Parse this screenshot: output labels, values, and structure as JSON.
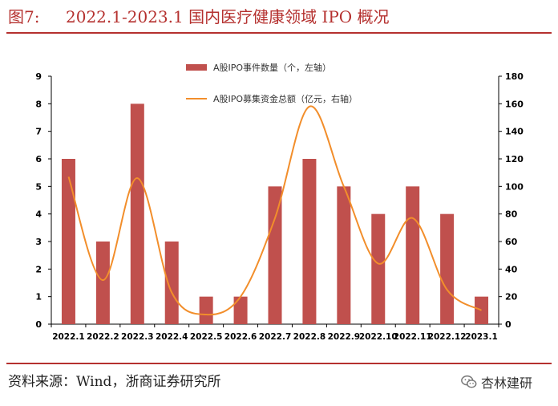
{
  "title": {
    "figure_number": "图7:",
    "text": "2022.1-2023.1 国内医疗健康领域 IPO 概况"
  },
  "source": "资料来源：Wind，浙商证券研究所",
  "brand": {
    "name": "杏林建研",
    "icon": "wechat-icon"
  },
  "colors": {
    "accent": "#b5312f",
    "bar": "#c0504d",
    "line": "#f28e2b"
  },
  "chart_data": {
    "type": "bar",
    "categories": [
      "2022.1",
      "2022.2",
      "2022.3",
      "2022.4",
      "2022.5",
      "2022.6",
      "2022.7",
      "2022.8",
      "2022.9",
      "2022.10",
      "2022.11",
      "2022.12",
      "2023.1"
    ],
    "series": [
      {
        "name": "A股IPO事件数量（个，左轴）",
        "type": "bar",
        "axis": "left",
        "values": [
          6,
          3,
          8,
          3,
          1,
          1,
          5,
          6,
          5,
          4,
          5,
          4,
          1
        ]
      },
      {
        "name": "A股IPO募集资金总额（亿元，右轴）",
        "type": "line",
        "axis": "right",
        "values": [
          107,
          32,
          106,
          23,
          7,
          20,
          77,
          158,
          100,
          44,
          77,
          25,
          10
        ]
      }
    ],
    "y_left": {
      "min": 0,
      "max": 9,
      "ticks": [
        0,
        1,
        2,
        3,
        4,
        5,
        6,
        7,
        8,
        9
      ]
    },
    "y_right": {
      "min": 0,
      "max": 180,
      "ticks": [
        0,
        20,
        40,
        60,
        80,
        100,
        120,
        140,
        160,
        180
      ]
    },
    "xlabel": "",
    "ylabel": "",
    "legend_position": "top-center",
    "grid": false
  }
}
